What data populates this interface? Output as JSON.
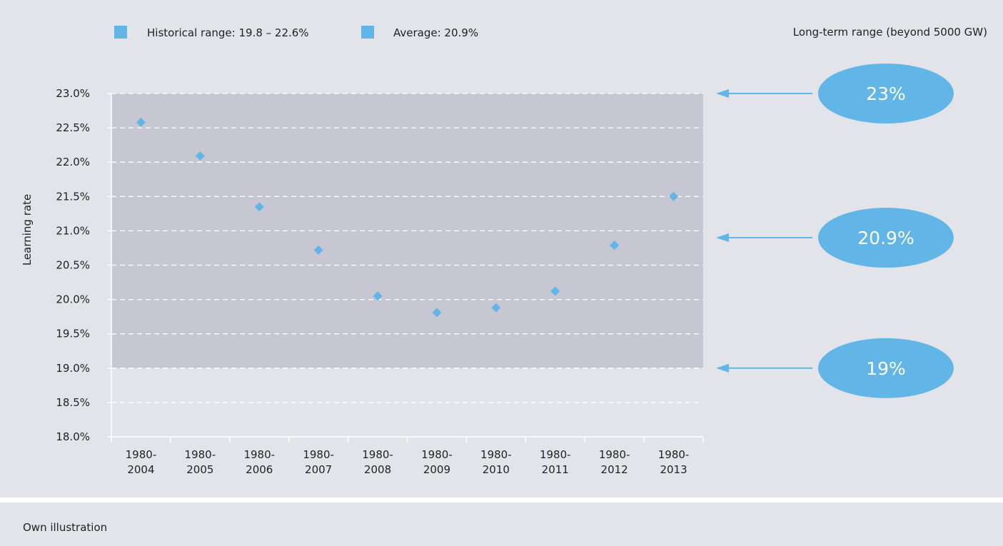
{
  "legend": {
    "historical_label": "Historical range: 19.8 – 22.6%",
    "average_label": "Average: 20.9%",
    "long_term_label": "Long-term range (beyond 5000 GW)"
  },
  "footer": {
    "source": "Own illustration"
  },
  "colors": {
    "panel_bg": "#e3e4e9",
    "shaded_band": "#c6c7d2",
    "marker": "#62b6e7",
    "bubble": "#62b6e7"
  },
  "chart_data": {
    "type": "scatter",
    "ylabel": "Learning rate",
    "xlabel": "",
    "ylim": [
      18.0,
      23.0
    ],
    "yticks": [
      "18.0%",
      "18.5%",
      "19.0%",
      "19.5%",
      "20.0%",
      "20.5%",
      "21.0%",
      "21.5%",
      "22.0%",
      "22.5%",
      "23.0%"
    ],
    "categories": [
      [
        "1980-",
        "2004"
      ],
      [
        "1980-",
        "2005"
      ],
      [
        "1980-",
        "2006"
      ],
      [
        "1980-",
        "2007"
      ],
      [
        "1980-",
        "2008"
      ],
      [
        "1980-",
        "2009"
      ],
      [
        "1980-",
        "2010"
      ],
      [
        "1980-",
        "2011"
      ],
      [
        "1980-",
        "2012"
      ],
      [
        "1980-",
        "2013"
      ]
    ],
    "values": [
      22.58,
      22.09,
      21.35,
      20.72,
      20.05,
      19.81,
      19.88,
      20.12,
      20.79,
      21.5
    ],
    "shaded_range": [
      19.0,
      23.0
    ],
    "grid": "dashed horizontal",
    "long_term_markers": [
      {
        "value": 23.0,
        "label": "23%"
      },
      {
        "value": 20.9,
        "label": "20.9%"
      },
      {
        "value": 19.0,
        "label": "19%"
      }
    ]
  }
}
